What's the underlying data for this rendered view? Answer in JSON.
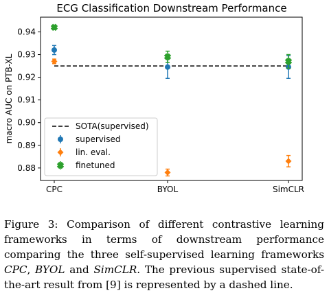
{
  "chart_data": {
    "type": "scatter",
    "title": "ECG Classification Downstream Performance",
    "xlabel": "",
    "ylabel": "macro AUC on PTB-XL",
    "categories": [
      "CPC",
      "BYOL",
      "SimCLR"
    ],
    "ylim": [
      0.8745,
      0.9465
    ],
    "yticks": [
      "0.88",
      "0.89",
      "0.90",
      "0.91",
      "0.92",
      "0.93",
      "0.94"
    ],
    "grid": false,
    "legend_position": "lower-left",
    "reference_line": {
      "name": "SOTA(supervised)",
      "value": 0.925,
      "style": "dashed",
      "color": "#000000"
    },
    "series": [
      {
        "name": "supervised",
        "marker": "circle",
        "color": "#1f77b4",
        "values": [
          0.932,
          0.9245,
          0.9245
        ],
        "errors": [
          0.002,
          0.005,
          0.005
        ]
      },
      {
        "name": "lin. eval.",
        "marker": "diamond",
        "color": "#ff7f0e",
        "values": [
          0.927,
          0.878,
          0.883
        ],
        "errors": [
          0.001,
          0.0015,
          0.0025
        ]
      },
      {
        "name": "finetuned",
        "marker": "x-filled",
        "color": "#2ca02c",
        "values": [
          0.942,
          0.929,
          0.927
        ],
        "errors": [
          0.001,
          0.0025,
          0.003
        ]
      }
    ]
  },
  "caption": {
    "prefix": "Figure 3: Comparison of different contrastive learning frameworks in terms of downstream performance comparing the three self-supervised learning frameworks ",
    "term1": "CPC",
    "comma": ", ",
    "term2": "BYOL",
    "and": " and ",
    "term3": "SimCLR",
    "suffix": ". The previous supervised state-of-the-art result from [9] is represented by a dashed line."
  }
}
